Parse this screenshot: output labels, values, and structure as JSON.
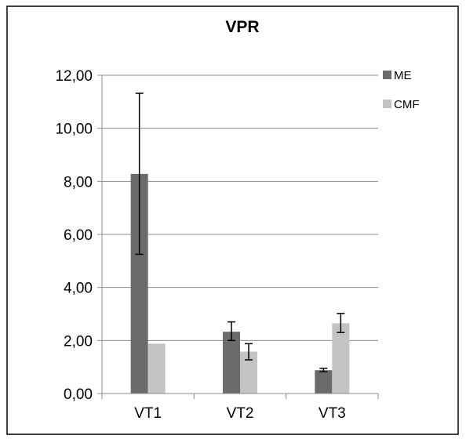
{
  "chart_data": {
    "type": "bar",
    "title": "VPR",
    "xlabel": "",
    "ylabel": "",
    "categories": [
      "VT1",
      "VT2",
      "VT3"
    ],
    "ylim": [
      0,
      12
    ],
    "yticks": [
      "0,00",
      "2,00",
      "4,00",
      "6,00",
      "8,00",
      "10,00",
      "12,00"
    ],
    "ytick_values": [
      0,
      2,
      4,
      6,
      8,
      10,
      12
    ],
    "grid": true,
    "legend_position": "right",
    "error_bars": true,
    "series": [
      {
        "name": "ME",
        "color": "#6b6b6b",
        "values": [
          8.28,
          2.33,
          0.88
        ],
        "error_low": [
          5.25,
          2.0,
          0.82
        ],
        "error_high": [
          11.32,
          2.7,
          0.95
        ]
      },
      {
        "name": "CMF",
        "color": "#c3c3c3",
        "values": [
          1.88,
          1.58,
          2.65
        ],
        "error_low": [
          1.88,
          1.27,
          2.3
        ],
        "error_high": [
          1.88,
          1.88,
          3.02
        ]
      }
    ]
  }
}
